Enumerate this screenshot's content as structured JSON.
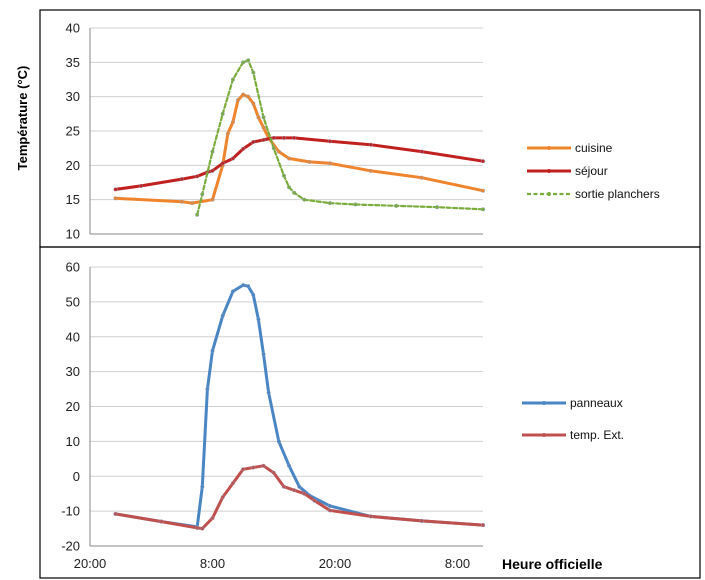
{
  "chart_data": [
    {
      "type": "line",
      "ylabel": "Température (°C)",
      "ylim": [
        10,
        40
      ],
      "yticks": [
        10,
        15,
        20,
        25,
        30,
        35,
        40
      ],
      "xlim": [
        0,
        38.5
      ],
      "grid": true,
      "legend": "right",
      "series": [
        {
          "name": "cuisine",
          "color": "#f0842c",
          "style": "solid",
          "x": [
            2.5,
            9,
            10,
            12,
            13,
            13.5,
            14,
            14.5,
            15,
            15.5,
            16,
            16.5,
            17,
            17.5,
            18.5,
            19.5,
            21.5,
            23.5,
            27.5,
            32.5,
            38.5
          ],
          "y": [
            15.2,
            14.7,
            14.5,
            15.0,
            20.0,
            24.6,
            26.3,
            29.5,
            30.3,
            30.0,
            29.0,
            27.0,
            25.5,
            24.0,
            22.0,
            21.0,
            20.5,
            20.3,
            19.2,
            18.2,
            16.3
          ]
        },
        {
          "name": "séjour",
          "color": "#c0201e",
          "style": "solid",
          "x": [
            2.5,
            5,
            9,
            10.5,
            11.5,
            12,
            13,
            14,
            15,
            16,
            17,
            18,
            19,
            20,
            23.5,
            27.5,
            32.5,
            38.5
          ],
          "y": [
            16.5,
            17.0,
            18.0,
            18.4,
            19.0,
            19.2,
            20.3,
            21.0,
            22.4,
            23.4,
            23.7,
            24.0,
            24.0,
            24.0,
            23.5,
            23.0,
            22.0,
            20.6
          ]
        },
        {
          "name": "sortie planchers",
          "color": "#7aac3c",
          "style": "dashed",
          "x": [
            10.5,
            11,
            12,
            13,
            14,
            15,
            15.5,
            16,
            17,
            18,
            19,
            19.5,
            20,
            21,
            23.5,
            26,
            30,
            34,
            38.5
          ],
          "y": [
            12.8,
            15.8,
            22.0,
            27.5,
            32.5,
            35.0,
            35.3,
            33.5,
            27.0,
            22.5,
            18.5,
            16.8,
            16.0,
            15.0,
            14.5,
            14.3,
            14.1,
            13.9,
            13.6
          ]
        }
      ]
    },
    {
      "type": "line",
      "ylim": [
        -20,
        60
      ],
      "yticks": [
        -20,
        -10,
        0,
        10,
        20,
        30,
        40,
        50,
        60
      ],
      "xlim": [
        0,
        38.5
      ],
      "grid": true,
      "legend": "right",
      "xlabel": "Heure officielle",
      "xticks": [
        {
          "x": 0,
          "label": "20:00"
        },
        {
          "x": 12,
          "label": "8:00"
        },
        {
          "x": 24,
          "label": "20:00"
        },
        {
          "x": 36,
          "label": "8:00"
        }
      ],
      "series": [
        {
          "name": "panneaux",
          "color": "#4a86c4",
          "style": "solid",
          "x": [
            2.5,
            7,
            10.5,
            11,
            11.5,
            12,
            13,
            14,
            15,
            15.5,
            16,
            16.5,
            17,
            17.5,
            18.5,
            19.5,
            20.5,
            21.5,
            23.5,
            27.5,
            32.5,
            38.5
          ],
          "y": [
            -10.8,
            -13.0,
            -14.5,
            -3.0,
            25.0,
            36.0,
            46.0,
            53.0,
            54.8,
            54.5,
            52.0,
            45.0,
            35.0,
            24.0,
            10.0,
            3.0,
            -3.0,
            -5.5,
            -8.5,
            -11.5,
            -12.8,
            -14.0
          ]
        },
        {
          "name": "temp. Ext.",
          "color": "#c0504d",
          "style": "solid",
          "x": [
            2.5,
            7,
            10.5,
            11,
            12,
            13,
            14,
            15,
            16,
            17,
            18,
            19,
            20,
            21,
            22,
            23.5,
            27.5,
            32.5,
            38.5
          ],
          "y": [
            -10.8,
            -13.0,
            -14.8,
            -15.0,
            -12.0,
            -6.0,
            -2.0,
            2.0,
            2.5,
            3.0,
            1.0,
            -3.0,
            -4.0,
            -5.0,
            -7.0,
            -9.8,
            -11.5,
            -12.8,
            -14.0
          ]
        }
      ]
    }
  ]
}
